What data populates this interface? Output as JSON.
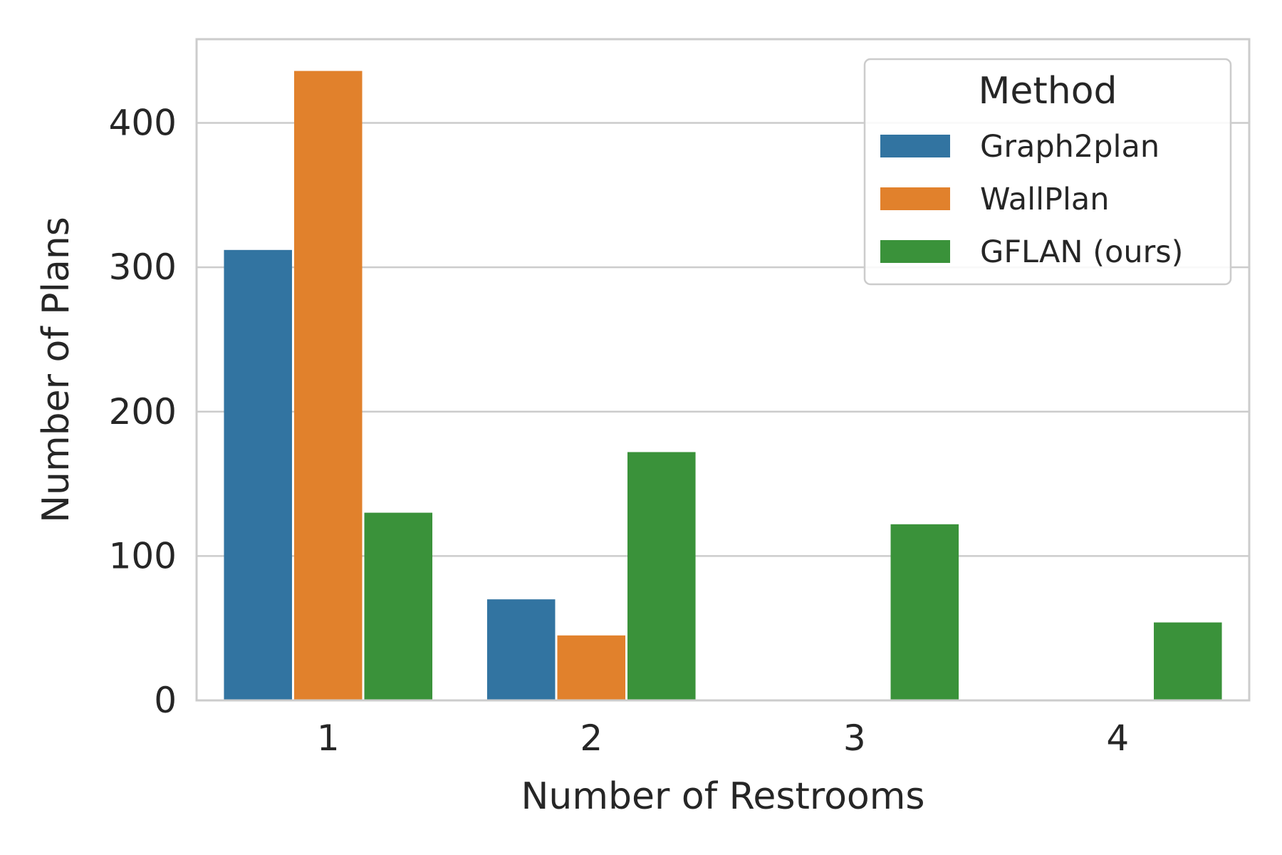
{
  "chart_data": {
    "type": "bar",
    "categories": [
      "1",
      "2",
      "3",
      "4"
    ],
    "series": [
      {
        "name": "Graph2plan",
        "color": "#3274a1",
        "values": [
          312,
          70,
          0,
          0
        ]
      },
      {
        "name": "WallPlan",
        "color": "#e1812c",
        "values": [
          436,
          45,
          0,
          0
        ]
      },
      {
        "name": "GFLAN (ours)",
        "color": "#3a923a",
        "values": [
          130,
          172,
          122,
          54
        ]
      }
    ],
    "title": "",
    "xlabel": "Number of Restrooms",
    "ylabel": "Number of Plans",
    "ylim": [
      0,
      458
    ],
    "yticks": [
      0,
      100,
      200,
      300,
      400
    ],
    "grid": true,
    "legend": {
      "title": "Method",
      "placement": "top-right"
    }
  }
}
